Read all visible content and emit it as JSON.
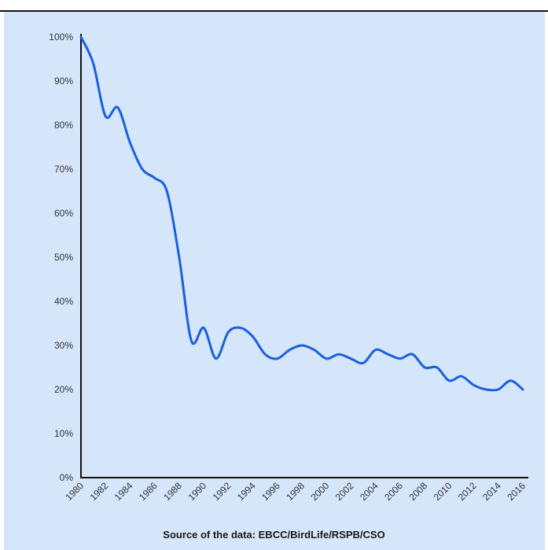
{
  "colors": {
    "background": "#d5e6fb",
    "line": "#1a5fe0",
    "axis": "#111111"
  },
  "source_text": "Source of the data: EBCC/BirdLife/RSPB/CSO",
  "chart_data": {
    "type": "line",
    "title": "",
    "xlabel": "",
    "ylabel": "",
    "grid": false,
    "xlim": [
      1980,
      2016
    ],
    "ylim": [
      0,
      100
    ],
    "y_ticks": [
      "0%",
      "10%",
      "20%",
      "30%",
      "40%",
      "50%",
      "60%",
      "70%",
      "80%",
      "90%",
      "100%"
    ],
    "x_ticks": [
      "1980",
      "1982",
      "1984",
      "1986",
      "1988",
      "1990",
      "1992",
      "1994",
      "1996",
      "1998",
      "2000",
      "2002",
      "2004",
      "2006",
      "2008",
      "2010",
      "2012",
      "2014",
      "2016"
    ],
    "series": [
      {
        "x": [
          1980,
          1981,
          1982,
          1983,
          1984,
          1985,
          1986,
          1987,
          1988,
          1989,
          1990,
          1991,
          1992,
          1993,
          1994,
          1995,
          1996,
          1997,
          1998,
          1999,
          2000,
          2001,
          2002,
          2003,
          2004,
          2005,
          2006,
          2007,
          2008,
          2009,
          2010,
          2011,
          2012,
          2013,
          2014,
          2015,
          2016
        ],
        "values": [
          100,
          94,
          82,
          84,
          76,
          70,
          68,
          65,
          50,
          31,
          34,
          27,
          33,
          34,
          32,
          28,
          27,
          29,
          30,
          29,
          27,
          28,
          27,
          26,
          29,
          28,
          27,
          28,
          25,
          25,
          22,
          23,
          21,
          20,
          20,
          22,
          20
        ]
      }
    ]
  }
}
